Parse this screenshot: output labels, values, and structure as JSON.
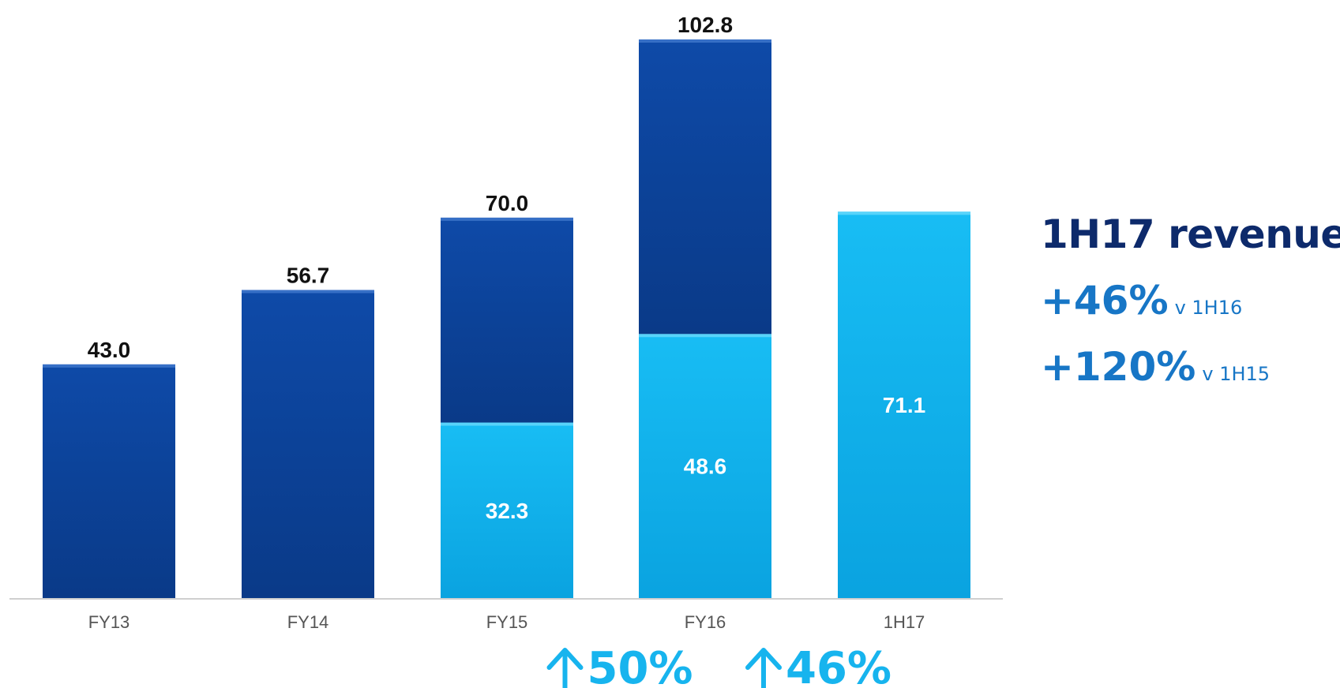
{
  "chart_data": {
    "type": "bar",
    "stacked": true,
    "categories": [
      "FY13",
      "FY14",
      "FY15",
      "FY16",
      "1H17"
    ],
    "series": [
      {
        "values": [
          0,
          0,
          32.3,
          48.6,
          71.1
        ],
        "color": "#15b3f0"
      },
      {
        "values": [
          43.0,
          56.7,
          37.7,
          54.2,
          0
        ],
        "color": "#0d44a0"
      }
    ],
    "totals": [
      43.0,
      56.7,
      70.0,
      102.8,
      null
    ],
    "total_labels": [
      "43.0",
      "56.7",
      "70.0",
      "102.8",
      ""
    ],
    "inner_labels": [
      "",
      "",
      "32.3",
      "48.6",
      "71.1"
    ],
    "ylim": [
      0,
      102.8
    ],
    "grid": false,
    "growth_annotations": [
      {
        "between": [
          "FY15",
          "FY16"
        ],
        "text": "50%"
      },
      {
        "between": [
          "FY16",
          "1H17"
        ],
        "text": "46%"
      }
    ]
  },
  "side_panel": {
    "title": "1H17 revenue",
    "stats": [
      {
        "value": "+46%",
        "ref": "v 1H16"
      },
      {
        "value": "+120%",
        "ref": "v 1H15"
      }
    ]
  }
}
